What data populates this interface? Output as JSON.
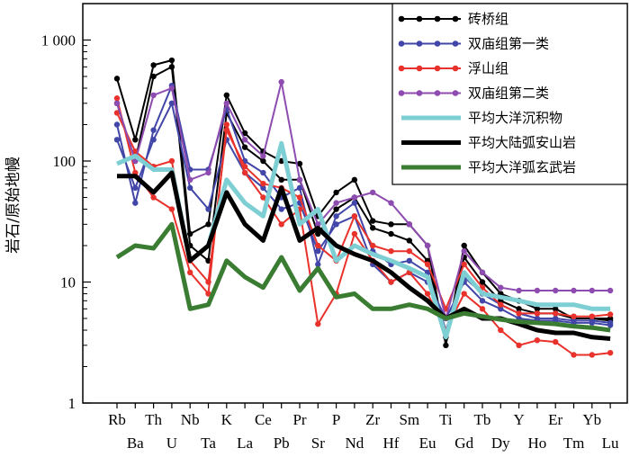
{
  "chart_data": {
    "type": "line",
    "title": "",
    "xlabel": "",
    "ylabel": "岩石/原始地幔",
    "yscale": "log",
    "ylim": [
      1,
      2000
    ],
    "y_ticks": [
      {
        "value": 1,
        "label": "1"
      },
      {
        "value": 10,
        "label": "10"
      },
      {
        "value": 100,
        "label": "100"
      },
      {
        "value": 1000,
        "label": "1 000"
      }
    ],
    "categories": [
      "Rb",
      "Ba",
      "Th",
      "U",
      "Nb",
      "Ta",
      "K",
      "La",
      "Ce",
      "Pb",
      "Pr",
      "Sr",
      "P",
      "Nd",
      "Zr",
      "Hf",
      "Sm",
      "Eu",
      "Ti",
      "Gd",
      "Tb",
      "Dy",
      "Y",
      "Ho",
      "Er",
      "Tm",
      "Yb",
      "Lu"
    ],
    "legend_position": "top-right",
    "series": [
      {
        "name": "砖桥组",
        "color": "#000000",
        "marker": true,
        "width": 2,
        "values": [
          480,
          150,
          620,
          680,
          25,
          30,
          350,
          170,
          120,
          100,
          95,
          35,
          55,
          70,
          32,
          30,
          30,
          20,
          3,
          20,
          12,
          8,
          7,
          6,
          6,
          5,
          5,
          5
        ]
      },
      {
        "name": "砖桥组",
        "color": "#000000",
        "marker": true,
        "width": 2,
        "values": [
          300,
          100,
          500,
          600,
          20,
          15,
          250,
          130,
          100,
          70,
          70,
          25,
          40,
          50,
          28,
          25,
          22,
          15,
          3.5,
          16,
          10,
          7,
          6,
          5.5,
          5.5,
          5,
          5,
          4.8
        ]
      },
      {
        "name": "双庙组第一类",
        "color": "#4146a8",
        "marker": true,
        "width": 2,
        "values": [
          200,
          45,
          180,
          420,
          85,
          85,
          270,
          100,
          80,
          50,
          60,
          14,
          35,
          45,
          18,
          14,
          15,
          12,
          4,
          11,
          8,
          6.5,
          5.5,
          5,
          5,
          4.8,
          4.8,
          4.6
        ]
      },
      {
        "name": "双庙组第一类",
        "color": "#4146a8",
        "marker": true,
        "width": 2,
        "values": [
          150,
          60,
          150,
          300,
          60,
          40,
          150,
          80,
          60,
          40,
          45,
          18,
          30,
          35,
          14,
          10,
          12,
          10,
          5,
          10,
          7,
          6,
          5,
          4.8,
          4.8,
          4.6,
          4.6,
          4.4
        ]
      },
      {
        "name": "浮山组",
        "color": "#e8322b",
        "marker": true,
        "width": 2,
        "values": [
          330,
          80,
          50,
          40,
          12,
          8,
          200,
          80,
          50,
          30,
          40,
          4.5,
          8,
          25,
          15,
          10,
          12,
          8,
          4,
          8,
          6,
          4,
          3,
          3.3,
          3.2,
          2.5,
          2.5,
          2.6
        ]
      },
      {
        "name": "浮山组",
        "color": "#e8322b",
        "marker": true,
        "width": 2,
        "values": [
          250,
          120,
          90,
          100,
          15,
          10,
          180,
          90,
          65,
          60,
          50,
          20,
          15,
          35,
          20,
          18,
          18,
          14,
          6,
          14,
          9,
          6.5,
          5.5,
          5.5,
          5.5,
          5.2,
          5.2,
          5.4
        ]
      },
      {
        "name": "双庙组第二类",
        "color": "#8e4bb0",
        "marker": true,
        "width": 2,
        "values": [
          300,
          100,
          350,
          400,
          70,
          80,
          300,
          150,
          110,
          450,
          70,
          30,
          45,
          50,
          55,
          45,
          30,
          20,
          5,
          18,
          12,
          9,
          8.5,
          8.5,
          8.5,
          8.5,
          8.5,
          8.5
        ]
      },
      {
        "name": "平均大洋沉积物",
        "color": "#7ecfd3",
        "marker": false,
        "width": 5,
        "values": [
          95,
          110,
          85,
          85,
          15,
          20,
          70,
          45,
          35,
          140,
          30,
          40,
          15,
          20,
          17,
          15,
          13,
          11,
          3.5,
          12,
          8,
          7.5,
          7,
          6.5,
          6.5,
          6.5,
          6,
          6
        ]
      },
      {
        "name": "平均大陆弧安山岩",
        "color": "#000000",
        "marker": false,
        "width": 5,
        "values": [
          75,
          75,
          55,
          80,
          15,
          20,
          55,
          30,
          22,
          60,
          22,
          28,
          20,
          17,
          15,
          12,
          9,
          7,
          5,
          6,
          5,
          5,
          4.5,
          4,
          3.8,
          3.8,
          3.5,
          3.4
        ]
      },
      {
        "name": "平均大洋弧玄武岩",
        "color": "#3a7d32",
        "marker": false,
        "width": 5,
        "values": [
          16,
          20,
          19,
          30,
          6,
          6.5,
          15,
          11,
          9,
          16,
          8.5,
          13,
          7.5,
          8,
          6,
          6,
          6.5,
          6,
          5,
          5.5,
          5.2,
          4.9,
          4.7,
          4.6,
          4.5,
          4.3,
          4.2,
          4
        ]
      }
    ],
    "legend": [
      {
        "name": "砖桥组",
        "color": "#000000",
        "marker": true,
        "width": 2
      },
      {
        "name": "双庙组第一类",
        "color": "#4146a8",
        "marker": true,
        "width": 2
      },
      {
        "name": "浮山组",
        "color": "#e8322b",
        "marker": true,
        "width": 2
      },
      {
        "name": "双庙组第二类",
        "color": "#8e4bb0",
        "marker": true,
        "width": 2
      },
      {
        "name": "平均大洋沉积物",
        "color": "#7ecfd3",
        "marker": false,
        "width": 5
      },
      {
        "name": "平均大陆弧安山岩",
        "color": "#000000",
        "marker": false,
        "width": 5
      },
      {
        "name": "平均大洋弧玄武岩",
        "color": "#3a7d32",
        "marker": false,
        "width": 5
      }
    ]
  }
}
